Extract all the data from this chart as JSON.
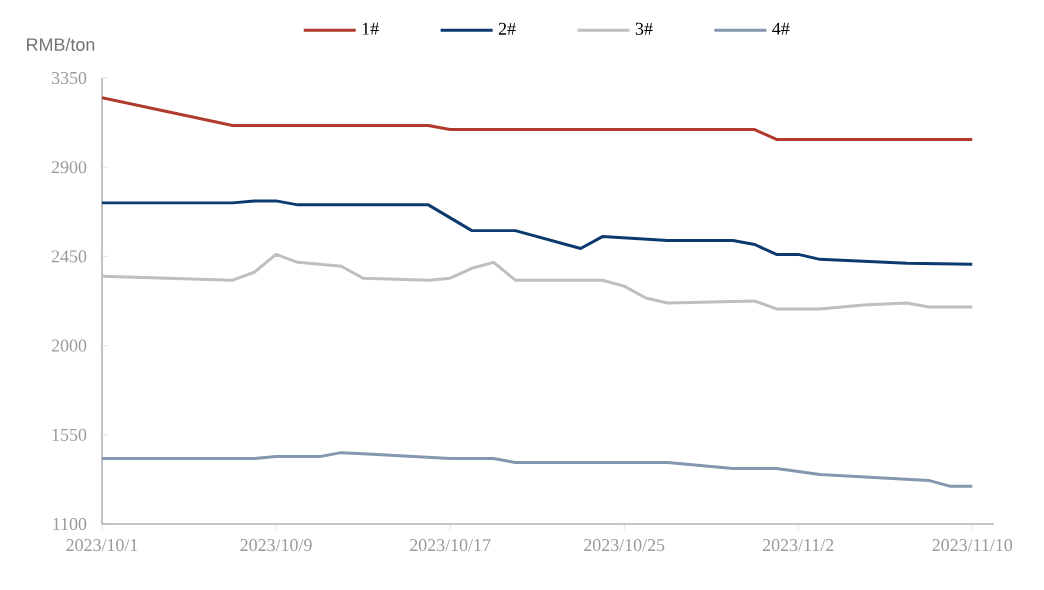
{
  "chart_data": {
    "type": "line",
    "ylabel": "RMB/ton",
    "xlim": [
      "2023-10-01",
      "2023-11-11"
    ],
    "ylim": [
      1100,
      3350
    ],
    "xticks": [
      {
        "value": "2023-10-01",
        "label": "2023/10/1"
      },
      {
        "value": "2023-10-09",
        "label": "2023/10/9"
      },
      {
        "value": "2023-10-17",
        "label": "2023/10/17"
      },
      {
        "value": "2023-10-25",
        "label": "2023/10/25"
      },
      {
        "value": "2023-11-02",
        "label": "2023/11/2"
      },
      {
        "value": "2023-11-10",
        "label": "2023/11/10"
      }
    ],
    "yticks": [
      1100,
      1550,
      2000,
      2450,
      2900,
      3350
    ],
    "legend": "top",
    "grid": false,
    "marker": "none",
    "line_style": "solid",
    "series": [
      {
        "name": "1#",
        "color": "#b03a2e",
        "x": [
          "2023-10-01",
          "2023-10-07",
          "2023-10-16",
          "2023-10-17",
          "2023-10-31",
          "2023-11-01",
          "2023-11-10"
        ],
        "values": [
          3250,
          3110,
          3110,
          3090,
          3090,
          3040,
          3040
        ]
      },
      {
        "name": "2#",
        "color": "#0d3a6e",
        "x": [
          "2023-10-01",
          "2023-10-07",
          "2023-10-08",
          "2023-10-09",
          "2023-10-10",
          "2023-10-16",
          "2023-10-18",
          "2023-10-20",
          "2023-10-23",
          "2023-10-24",
          "2023-10-27",
          "2023-10-30",
          "2023-10-31",
          "2023-11-01",
          "2023-11-02",
          "2023-11-03",
          "2023-11-07",
          "2023-11-10"
        ],
        "values": [
          2720,
          2720,
          2730,
          2730,
          2710,
          2710,
          2580,
          2580,
          2490,
          2550,
          2530,
          2530,
          2510,
          2460,
          2460,
          2435,
          2415,
          2410
        ]
      },
      {
        "name": "3#",
        "color": "#bfbfbf",
        "x": [
          "2023-10-01",
          "2023-10-07",
          "2023-10-08",
          "2023-10-09",
          "2023-10-10",
          "2023-10-12",
          "2023-10-13",
          "2023-10-16",
          "2023-10-17",
          "2023-10-18",
          "2023-10-19",
          "2023-10-20",
          "2023-10-24",
          "2023-10-25",
          "2023-10-26",
          "2023-10-27",
          "2023-10-31",
          "2023-11-01",
          "2023-11-03",
          "2023-11-05",
          "2023-11-07",
          "2023-11-08",
          "2023-11-10"
        ],
        "values": [
          2350,
          2330,
          2370,
          2460,
          2420,
          2400,
          2340,
          2330,
          2340,
          2390,
          2420,
          2330,
          2330,
          2300,
          2240,
          2215,
          2225,
          2185,
          2185,
          2205,
          2215,
          2195,
          2195
        ]
      },
      {
        "name": "4#",
        "color": "#8496b0",
        "x": [
          "2023-10-01",
          "2023-10-08",
          "2023-10-09",
          "2023-10-11",
          "2023-10-12",
          "2023-10-13",
          "2023-10-17",
          "2023-10-19",
          "2023-10-20",
          "2023-10-27",
          "2023-10-30",
          "2023-11-01",
          "2023-11-03",
          "2023-11-08",
          "2023-11-09",
          "2023-11-10"
        ],
        "values": [
          1430,
          1430,
          1440,
          1440,
          1460,
          1455,
          1430,
          1430,
          1410,
          1410,
          1380,
          1380,
          1350,
          1320,
          1290,
          1290
        ]
      }
    ]
  }
}
